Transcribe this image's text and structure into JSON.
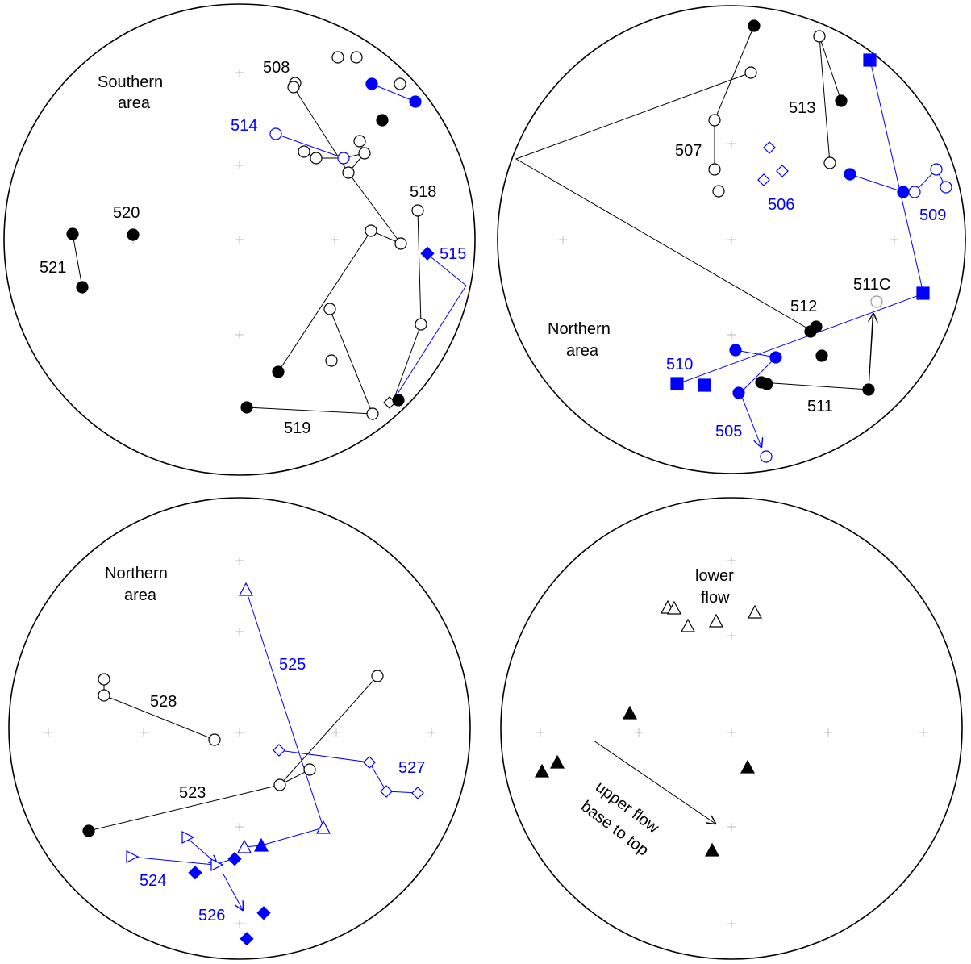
{
  "colors": {
    "black": "#000000",
    "blue": "#0000ff",
    "grey": "#999999"
  },
  "panels": [
    {
      "id": "southern",
      "labels": [
        {
          "text": "Southern",
          "color": "black"
        },
        {
          "text": "area",
          "color": "black"
        },
        {
          "text": "508",
          "color": "black"
        },
        {
          "text": "514",
          "color": "blue"
        },
        {
          "text": "518",
          "color": "black"
        },
        {
          "text": "520",
          "color": "black"
        },
        {
          "text": "521",
          "color": "black"
        },
        {
          "text": "515",
          "color": "blue"
        },
        {
          "text": "519",
          "color": "black"
        }
      ]
    },
    {
      "id": "northern-1",
      "labels": [
        {
          "text": "513",
          "color": "black"
        },
        {
          "text": "507",
          "color": "black"
        },
        {
          "text": "506",
          "color": "blue"
        },
        {
          "text": "509",
          "color": "blue"
        },
        {
          "text": "511C",
          "color": "black"
        },
        {
          "text": "512",
          "color": "black"
        },
        {
          "text": "Northern",
          "color": "black"
        },
        {
          "text": "area",
          "color": "black"
        },
        {
          "text": "510",
          "color": "blue"
        },
        {
          "text": "511",
          "color": "black"
        },
        {
          "text": "505",
          "color": "blue"
        }
      ]
    },
    {
      "id": "northern-2",
      "labels": [
        {
          "text": "Northern",
          "color": "black"
        },
        {
          "text": "area",
          "color": "black"
        },
        {
          "text": "525",
          "color": "blue"
        },
        {
          "text": "528",
          "color": "black"
        },
        {
          "text": "527",
          "color": "blue"
        },
        {
          "text": "523",
          "color": "black"
        },
        {
          "text": "524",
          "color": "blue"
        },
        {
          "text": "526",
          "color": "blue"
        }
      ]
    },
    {
      "id": "flows",
      "labels": [
        {
          "text": "lower",
          "color": "black"
        },
        {
          "text": "flow",
          "color": "black"
        },
        {
          "text": "upper flow",
          "color": "black"
        },
        {
          "text": "base to top",
          "color": "black"
        }
      ]
    }
  ]
}
